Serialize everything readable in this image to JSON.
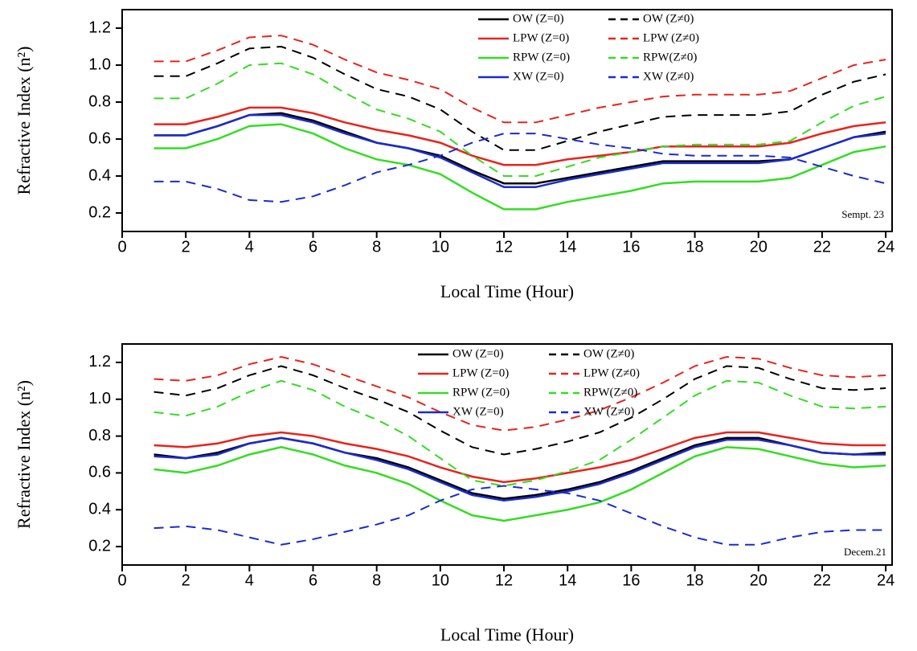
{
  "chart_data": [
    {
      "type": "line",
      "xlabel": "Local Time (Hour)",
      "ylabel": "Refractive Index (n²)",
      "annotation": "Sempt. 23",
      "x": [
        1,
        2,
        3,
        4,
        5,
        6,
        7,
        8,
        9,
        10,
        11,
        12,
        13,
        14,
        15,
        16,
        17,
        18,
        19,
        20,
        21,
        22,
        23,
        24
      ],
      "xlim": [
        0,
        24.2
      ],
      "xticks": [
        0,
        2,
        4,
        6,
        8,
        10,
        12,
        14,
        16,
        18,
        20,
        22,
        24
      ],
      "ylim": [
        0.1,
        1.3
      ],
      "yticks": [
        {
          "value": 0.2,
          "label": "0.2"
        },
        {
          "value": 0.4,
          "label": "0.4"
        },
        {
          "value": 0.6,
          "label": "0.6"
        },
        {
          "value": 0.8,
          "label": "0.8"
        },
        {
          "value": 1.0,
          "label": "1.0"
        },
        {
          "value": 1.2,
          "label": "1.2"
        }
      ],
      "legend": "top",
      "series": [
        {
          "name": "OW (Z=0)",
          "color": "#000000",
          "dashed": false,
          "values": [
            0.62,
            0.62,
            0.67,
            0.73,
            0.74,
            0.7,
            0.64,
            0.58,
            0.55,
            0.51,
            0.43,
            0.36,
            0.36,
            0.39,
            0.42,
            0.45,
            0.48,
            0.48,
            0.48,
            0.48,
            0.49,
            0.55,
            0.61,
            0.64
          ]
        },
        {
          "name": "OW (Z≠0)",
          "color": "#000000",
          "dashed": true,
          "values": [
            0.94,
            0.94,
            1.01,
            1.09,
            1.1,
            1.04,
            0.95,
            0.87,
            0.83,
            0.76,
            0.64,
            0.54,
            0.54,
            0.59,
            0.64,
            0.68,
            0.72,
            0.73,
            0.73,
            0.73,
            0.75,
            0.84,
            0.91,
            0.95
          ]
        },
        {
          "name": "LPW (Z=0)",
          "color": "#e8231c",
          "dashed": false,
          "values": [
            0.68,
            0.68,
            0.72,
            0.77,
            0.77,
            0.74,
            0.69,
            0.65,
            0.62,
            0.58,
            0.51,
            0.46,
            0.46,
            0.49,
            0.51,
            0.53,
            0.56,
            0.56,
            0.56,
            0.56,
            0.58,
            0.63,
            0.67,
            0.69
          ]
        },
        {
          "name": "LPW (Z≠0)",
          "color": "#e8231c",
          "dashed": true,
          "values": [
            1.02,
            1.02,
            1.08,
            1.15,
            1.16,
            1.11,
            1.03,
            0.96,
            0.92,
            0.87,
            0.77,
            0.69,
            0.69,
            0.73,
            0.77,
            0.8,
            0.83,
            0.84,
            0.84,
            0.84,
            0.86,
            0.93,
            1.0,
            1.03
          ]
        },
        {
          "name": "RPW (Z=0)",
          "color": "#33dd22",
          "dashed": false,
          "values": [
            0.55,
            0.55,
            0.6,
            0.67,
            0.68,
            0.63,
            0.55,
            0.49,
            0.46,
            0.41,
            0.31,
            0.22,
            0.22,
            0.26,
            0.29,
            0.32,
            0.36,
            0.37,
            0.37,
            0.37,
            0.39,
            0.46,
            0.53,
            0.56
          ]
        },
        {
          "name": "RPW(Z≠0)",
          "color": "#33dd22",
          "dashed": true,
          "values": [
            0.82,
            0.82,
            0.9,
            1.0,
            1.01,
            0.95,
            0.85,
            0.76,
            0.71,
            0.64,
            0.51,
            0.4,
            0.4,
            0.45,
            0.5,
            0.53,
            0.56,
            0.57,
            0.57,
            0.57,
            0.59,
            0.69,
            0.78,
            0.83
          ]
        },
        {
          "name": "XW (Z=0)",
          "color": "#1a2ccc",
          "dashed": false,
          "values": [
            0.62,
            0.62,
            0.67,
            0.73,
            0.73,
            0.69,
            0.63,
            0.58,
            0.55,
            0.5,
            0.42,
            0.34,
            0.34,
            0.38,
            0.41,
            0.44,
            0.47,
            0.47,
            0.47,
            0.47,
            0.49,
            0.55,
            0.61,
            0.63
          ]
        },
        {
          "name": "XW (Z≠0)",
          "color": "#1a2ccc",
          "dashed": true,
          "values": [
            0.37,
            0.37,
            0.33,
            0.27,
            0.26,
            0.29,
            0.35,
            0.42,
            0.46,
            0.51,
            0.58,
            0.63,
            0.63,
            0.6,
            0.57,
            0.55,
            0.52,
            0.51,
            0.51,
            0.51,
            0.5,
            0.45,
            0.4,
            0.36
          ]
        }
      ]
    },
    {
      "type": "line",
      "xlabel": "Local Time (Hour)",
      "ylabel": "Refractive Index (n²)",
      "annotation": "Decem.21",
      "x": [
        1,
        2,
        3,
        4,
        5,
        6,
        7,
        8,
        9,
        10,
        11,
        12,
        13,
        14,
        15,
        16,
        17,
        18,
        19,
        20,
        21,
        22,
        23,
        24
      ],
      "xlim": [
        0,
        24.2
      ],
      "xticks": [
        0,
        2,
        4,
        6,
        8,
        10,
        12,
        14,
        16,
        18,
        20,
        22,
        24
      ],
      "ylim": [
        0.1,
        1.3
      ],
      "yticks": [
        {
          "value": 0.2,
          "label": "0.2"
        },
        {
          "value": 0.4,
          "label": "0.4"
        },
        {
          "value": 0.6,
          "label": "0.6"
        },
        {
          "value": 0.8,
          "label": "0.8"
        },
        {
          "value": 1.0,
          "label": "1.0"
        },
        {
          "value": 1.2,
          "label": "1.2"
        }
      ],
      "legend": "top",
      "series": [
        {
          "name": "OW (Z=0)",
          "color": "#000000",
          "dashed": false,
          "values": [
            0.7,
            0.68,
            0.71,
            0.76,
            0.79,
            0.76,
            0.71,
            0.68,
            0.63,
            0.56,
            0.49,
            0.46,
            0.48,
            0.51,
            0.55,
            0.61,
            0.68,
            0.75,
            0.79,
            0.79,
            0.75,
            0.71,
            0.7,
            0.71
          ]
        },
        {
          "name": "OW (Z≠0)",
          "color": "#000000",
          "dashed": true,
          "values": [
            1.04,
            1.02,
            1.06,
            1.13,
            1.18,
            1.13,
            1.06,
            1.0,
            0.93,
            0.83,
            0.74,
            0.7,
            0.73,
            0.77,
            0.82,
            0.9,
            1.0,
            1.11,
            1.18,
            1.17,
            1.11,
            1.06,
            1.05,
            1.06
          ]
        },
        {
          "name": "LPW (Z=0)",
          "color": "#e8231c",
          "dashed": false,
          "values": [
            0.75,
            0.74,
            0.76,
            0.8,
            0.82,
            0.8,
            0.76,
            0.73,
            0.69,
            0.63,
            0.58,
            0.55,
            0.57,
            0.6,
            0.63,
            0.67,
            0.73,
            0.79,
            0.82,
            0.82,
            0.79,
            0.76,
            0.75,
            0.75
          ]
        },
        {
          "name": "LPW (Z≠0)",
          "color": "#e8231c",
          "dashed": true,
          "values": [
            1.11,
            1.1,
            1.13,
            1.19,
            1.23,
            1.19,
            1.13,
            1.07,
            1.01,
            0.93,
            0.86,
            0.83,
            0.85,
            0.89,
            0.94,
            1.01,
            1.09,
            1.18,
            1.23,
            1.22,
            1.17,
            1.13,
            1.12,
            1.13
          ]
        },
        {
          "name": "RPW (Z=0)",
          "color": "#33dd22",
          "dashed": false,
          "values": [
            0.62,
            0.6,
            0.64,
            0.7,
            0.74,
            0.7,
            0.64,
            0.6,
            0.54,
            0.45,
            0.37,
            0.34,
            0.37,
            0.4,
            0.44,
            0.51,
            0.6,
            0.69,
            0.74,
            0.73,
            0.69,
            0.65,
            0.63,
            0.64
          ]
        },
        {
          "name": "RPW(Z≠0)",
          "color": "#33dd22",
          "dashed": true,
          "values": [
            0.93,
            0.91,
            0.96,
            1.04,
            1.1,
            1.05,
            0.96,
            0.89,
            0.8,
            0.68,
            0.56,
            0.53,
            0.56,
            0.61,
            0.67,
            0.78,
            0.9,
            1.02,
            1.1,
            1.09,
            1.02,
            0.96,
            0.95,
            0.96
          ]
        },
        {
          "name": "XW (Z=0)",
          "color": "#1a2ccc",
          "dashed": false,
          "values": [
            0.69,
            0.68,
            0.7,
            0.76,
            0.79,
            0.76,
            0.71,
            0.67,
            0.62,
            0.55,
            0.48,
            0.45,
            0.47,
            0.5,
            0.54,
            0.6,
            0.67,
            0.74,
            0.78,
            0.78,
            0.75,
            0.71,
            0.7,
            0.7
          ]
        },
        {
          "name": "XW  (Z≠0)",
          "color": "#1a2ccc",
          "dashed": true,
          "values": [
            0.3,
            0.31,
            0.29,
            0.25,
            0.21,
            0.24,
            0.28,
            0.32,
            0.37,
            0.45,
            0.51,
            0.53,
            0.51,
            0.49,
            0.45,
            0.38,
            0.31,
            0.25,
            0.21,
            0.21,
            0.25,
            0.28,
            0.29,
            0.29
          ]
        }
      ]
    }
  ]
}
